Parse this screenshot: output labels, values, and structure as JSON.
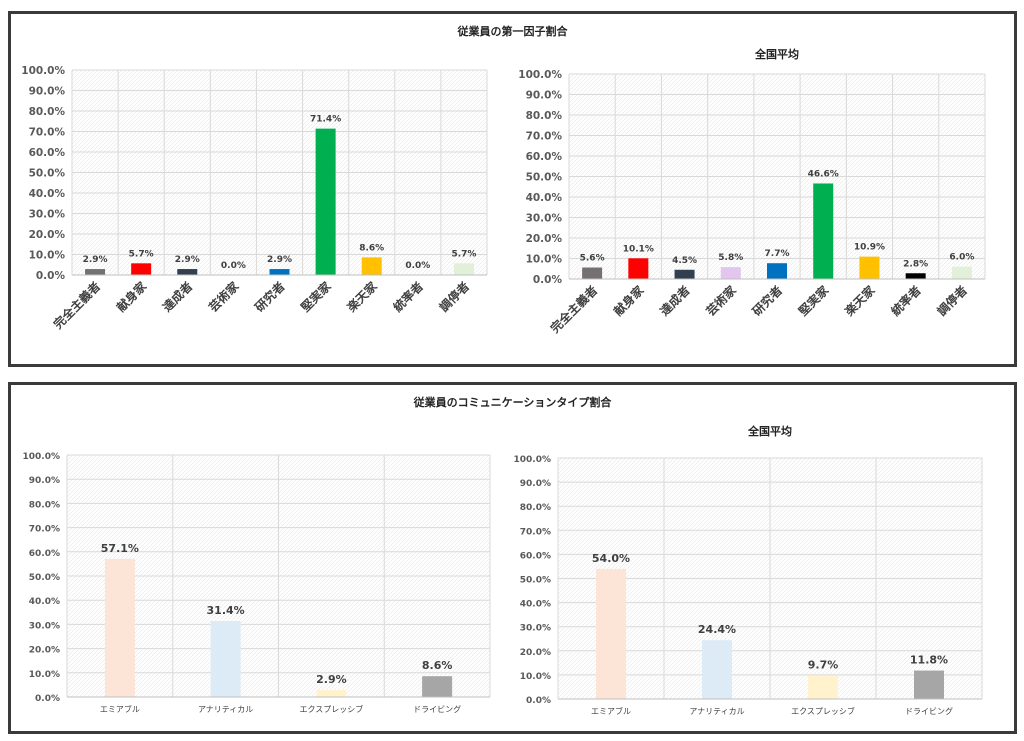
{
  "panel1": {
    "title": "従業員の第一因子割合"
  },
  "panel2": {
    "title": "従業員のコミュニケーションタイプ割合"
  },
  "chart_data": [
    {
      "type": "bar",
      "title": "",
      "categories": [
        "完全主義者",
        "献身家",
        "達成者",
        "芸術家",
        "研究者",
        "堅実家",
        "楽天家",
        "統率者",
        "調停者"
      ],
      "values": [
        2.9,
        5.7,
        2.9,
        0.0,
        2.9,
        71.4,
        8.6,
        0.0,
        5.7
      ],
      "labels": [
        "2.9%",
        "5.7%",
        "2.9%",
        "0.0%",
        "2.9%",
        "71.4%",
        "8.6%",
        "0.0%",
        "5.7%"
      ],
      "colors": [
        "#767171",
        "#ff0000",
        "#323f4f",
        "#e2c6ef",
        "#0070c0",
        "#00b050",
        "#ffc000",
        "#000000",
        "#e2f0d9"
      ],
      "yticks": [
        "0.0%",
        "10.0%",
        "20.0%",
        "30.0%",
        "40.0%",
        "50.0%",
        "60.0%",
        "70.0%",
        "80.0%",
        "90.0%",
        "100.0%"
      ],
      "ylim": [
        0,
        100
      ]
    },
    {
      "type": "bar",
      "title": "全国平均",
      "categories": [
        "完全主義者",
        "献身家",
        "達成者",
        "芸術家",
        "研究者",
        "堅実家",
        "楽天家",
        "統率者",
        "調停者"
      ],
      "values": [
        5.6,
        10.1,
        4.5,
        5.8,
        7.7,
        46.6,
        10.9,
        2.8,
        6.0
      ],
      "labels": [
        "5.6%",
        "10.1%",
        "4.5%",
        "5.8%",
        "7.7%",
        "46.6%",
        "10.9%",
        "2.8%",
        "6.0%"
      ],
      "colors": [
        "#767171",
        "#ff0000",
        "#323f4f",
        "#e2c6ef",
        "#0070c0",
        "#00b050",
        "#ffc000",
        "#000000",
        "#e2f0d9"
      ],
      "yticks": [
        "0.0%",
        "10.0%",
        "20.0%",
        "30.0%",
        "40.0%",
        "50.0%",
        "60.0%",
        "70.0%",
        "80.0%",
        "90.0%",
        "100.0%"
      ],
      "ylim": [
        0,
        100
      ]
    },
    {
      "type": "bar",
      "title": "",
      "categories": [
        "エミアブル",
        "アナリティカル",
        "エクスプレッシブ",
        "ドライビング"
      ],
      "values": [
        57.1,
        31.4,
        2.9,
        8.6
      ],
      "labels": [
        "57.1%",
        "31.4%",
        "2.9%",
        "8.6%"
      ],
      "colors": [
        "#fce4d6",
        "#ddebf7",
        "#fff2cc",
        "#a6a6a6"
      ],
      "yticks": [
        "0.0%",
        "10.0%",
        "20.0%",
        "30.0%",
        "40.0%",
        "50.0%",
        "60.0%",
        "70.0%",
        "80.0%",
        "90.0%",
        "100.0%"
      ],
      "ylim": [
        0,
        100
      ]
    },
    {
      "type": "bar",
      "title": "全国平均",
      "categories": [
        "エミアブル",
        "アナリティカル",
        "エクスプレッシブ",
        "ドライビング"
      ],
      "values": [
        54.0,
        24.4,
        9.7,
        11.8
      ],
      "labels": [
        "54.0%",
        "24.4%",
        "9.7%",
        "11.8%"
      ],
      "colors": [
        "#fce4d6",
        "#ddebf7",
        "#fff2cc",
        "#a6a6a6"
      ],
      "yticks": [
        "0.0%",
        "10.0%",
        "20.0%",
        "30.0%",
        "40.0%",
        "50.0%",
        "60.0%",
        "70.0%",
        "80.0%",
        "90.0%",
        "100.0%"
      ],
      "ylim": [
        0,
        100
      ]
    }
  ]
}
